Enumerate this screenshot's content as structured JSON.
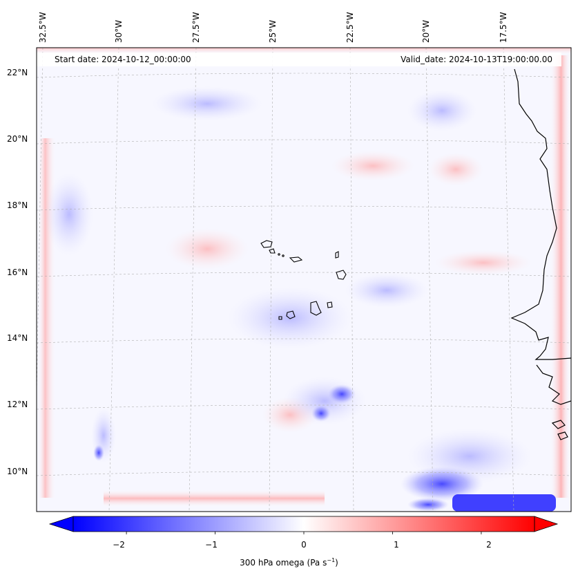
{
  "map": {
    "header_left": "Start date: 2024-10-12_00:00:00",
    "header_right": "Valid_date: 2024-10-13T19:00:00.00",
    "lon_labels": [
      "32.5°W",
      "30°W",
      "27.5°W",
      "25°W",
      "22.5°W",
      "20°W",
      "17.5°W"
    ],
    "lat_labels": [
      "22°N",
      "20°N",
      "18°N",
      "16°N",
      "14°N",
      "12°N",
      "10°N"
    ],
    "variable": "300 hPa omega",
    "units": "Pa s",
    "units_exponent": "−1",
    "colormap": "bwr",
    "colors": {
      "negative": "#0000ff",
      "zero": "#ffffff",
      "positive": "#ff0000",
      "coast": "#000000",
      "grid": "#b0b0b0"
    }
  },
  "colorbar": {
    "ticks": [
      "−2",
      "−1",
      "0",
      "1",
      "2"
    ],
    "tick_values": [
      -2,
      -1,
      0,
      1,
      2
    ],
    "min": -2.6,
    "max": 2.6,
    "extend": "both"
  }
}
